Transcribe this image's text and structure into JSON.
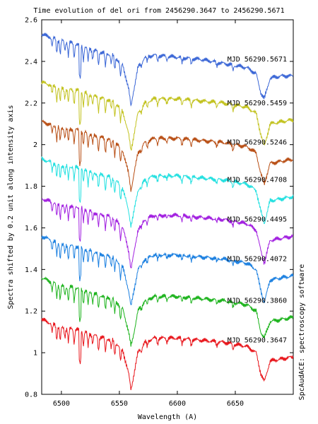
{
  "chart_data": {
    "type": "line",
    "title": "Time evolution of del ori  from 2456290.3647 to 2456290.5671",
    "xlabel": "Wavelength (A)",
    "ylabel": "Spectra shifted by 0.2 unit along intensity axis",
    "side_label": "SpcAudACE: spectroscopy software",
    "xlim": [
      6483,
      6700
    ],
    "ylim": [
      0.8,
      2.6
    ],
    "x_ticks": [
      6500,
      6550,
      6600,
      6650
    ],
    "y_ticks": [
      0.8,
      1.0,
      1.2,
      1.4,
      1.6,
      1.8,
      2.0,
      2.2,
      2.4,
      2.6
    ],
    "y_tick_labels": [
      "0.8",
      "1",
      "1.2",
      "1.4",
      "1.6",
      "1.8",
      "2",
      "2.2",
      "2.4",
      "2.6"
    ],
    "grid": false,
    "legend": "per-series labels right side",
    "series": [
      {
        "name": "MJD 56290.3647",
        "color": "#e8141a",
        "offset": 0.0,
        "x": [
          6483,
          6500,
          6515,
          6530,
          6545,
          6553,
          6558,
          6560,
          6562,
          6566,
          6572,
          6580,
          6600,
          6620,
          6640,
          6660,
          6668,
          6672,
          6675,
          6680,
          6690,
          6700
        ],
        "y": [
          1.16,
          1.12,
          1.11,
          1.08,
          1.06,
          1.01,
          0.9,
          0.82,
          0.88,
          1.0,
          1.05,
          1.07,
          1.07,
          1.06,
          1.05,
          1.03,
          1.0,
          0.9,
          0.86,
          0.96,
          0.97,
          0.98
        ]
      },
      {
        "name": "MJD 56290.3860",
        "color": "#1cb31c",
        "offset": 0.2,
        "x": [
          6483,
          6500,
          6515,
          6530,
          6545,
          6553,
          6558,
          6560,
          6562,
          6566,
          6572,
          6580,
          6600,
          6620,
          6640,
          6660,
          6668,
          6672,
          6675,
          6680,
          6690,
          6700
        ],
        "y": [
          1.36,
          1.32,
          1.31,
          1.28,
          1.26,
          1.21,
          1.1,
          1.03,
          1.08,
          1.2,
          1.25,
          1.27,
          1.27,
          1.26,
          1.25,
          1.23,
          1.2,
          1.1,
          1.07,
          1.15,
          1.16,
          1.17
        ]
      },
      {
        "name": "MJD 56290.4072",
        "color": "#1a7fe0",
        "offset": 0.4,
        "x": [
          6483,
          6500,
          6515,
          6530,
          6545,
          6553,
          6558,
          6560,
          6562,
          6566,
          6572,
          6580,
          6600,
          6620,
          6640,
          6660,
          6668,
          6672,
          6675,
          6680,
          6690,
          6700
        ],
        "y": [
          1.56,
          1.52,
          1.51,
          1.48,
          1.46,
          1.41,
          1.3,
          1.22,
          1.28,
          1.4,
          1.45,
          1.47,
          1.47,
          1.46,
          1.45,
          1.43,
          1.4,
          1.3,
          1.24,
          1.35,
          1.36,
          1.37
        ]
      },
      {
        "name": "MJD 56290.4495",
        "color": "#a11ee0",
        "offset": 0.6,
        "x": [
          6483,
          6500,
          6515,
          6530,
          6545,
          6553,
          6558,
          6560,
          6562,
          6566,
          6572,
          6580,
          6600,
          6620,
          6640,
          6660,
          6668,
          6672,
          6675,
          6680,
          6690,
          6700
        ],
        "y": [
          1.74,
          1.71,
          1.7,
          1.67,
          1.65,
          1.6,
          1.49,
          1.4,
          1.46,
          1.59,
          1.64,
          1.66,
          1.66,
          1.65,
          1.64,
          1.62,
          1.59,
          1.49,
          1.43,
          1.54,
          1.55,
          1.56
        ]
      },
      {
        "name": "MJD 56290.4708",
        "color": "#22e0e0",
        "offset": 0.8,
        "x": [
          6483,
          6500,
          6515,
          6530,
          6545,
          6553,
          6558,
          6560,
          6562,
          6566,
          6572,
          6580,
          6600,
          6620,
          6640,
          6660,
          6668,
          6672,
          6675,
          6680,
          6690,
          6700
        ],
        "y": [
          1.93,
          1.9,
          1.89,
          1.86,
          1.84,
          1.79,
          1.68,
          1.61,
          1.66,
          1.78,
          1.83,
          1.85,
          1.85,
          1.84,
          1.83,
          1.81,
          1.78,
          1.68,
          1.62,
          1.73,
          1.74,
          1.75
        ]
      },
      {
        "name": "MJD 56290.5246",
        "color": "#b84e14",
        "offset": 1.0,
        "x": [
          6483,
          6500,
          6515,
          6530,
          6545,
          6553,
          6558,
          6560,
          6562,
          6566,
          6572,
          6580,
          6600,
          6620,
          6640,
          6660,
          6668,
          6672,
          6675,
          6680,
          6690,
          6700
        ],
        "y": [
          2.11,
          2.08,
          2.07,
          2.04,
          2.02,
          1.97,
          1.86,
          1.78,
          1.84,
          1.96,
          2.01,
          2.03,
          2.03,
          2.02,
          2.01,
          1.99,
          1.96,
          1.86,
          1.81,
          1.91,
          1.92,
          1.93
        ]
      },
      {
        "name": "MJD 56290.5459",
        "color": "#c2c21e",
        "offset": 1.2,
        "x": [
          6483,
          6500,
          6515,
          6530,
          6545,
          6553,
          6558,
          6560,
          6562,
          6566,
          6572,
          6580,
          6600,
          6620,
          6640,
          6660,
          6668,
          6672,
          6675,
          6680,
          6690,
          6700
        ],
        "y": [
          2.3,
          2.27,
          2.26,
          2.23,
          2.21,
          2.16,
          2.05,
          1.97,
          2.03,
          2.15,
          2.2,
          2.22,
          2.22,
          2.21,
          2.2,
          2.18,
          2.15,
          2.05,
          1.99,
          2.1,
          2.11,
          2.12
        ]
      },
      {
        "name": "MJD 56290.5671",
        "color": "#3a66d6",
        "offset": 1.4,
        "x": [
          6483,
          6500,
          6515,
          6530,
          6545,
          6553,
          6558,
          6560,
          6562,
          6566,
          6572,
          6580,
          6600,
          6620,
          6640,
          6660,
          6668,
          6672,
          6675,
          6680,
          6690,
          6700
        ],
        "y": [
          2.53,
          2.5,
          2.48,
          2.45,
          2.43,
          2.38,
          2.27,
          2.18,
          2.25,
          2.37,
          2.42,
          2.43,
          2.42,
          2.41,
          2.39,
          2.37,
          2.34,
          2.25,
          2.22,
          2.32,
          2.33,
          2.33
        ]
      }
    ]
  }
}
